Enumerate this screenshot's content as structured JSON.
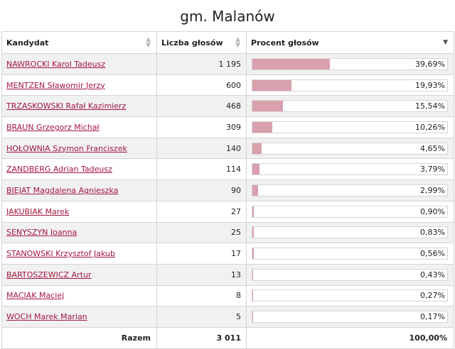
{
  "title": "gm. Malanów",
  "columns": {
    "candidate": "Kandydat",
    "votes": "Liczba głosów",
    "percent": "Procent głosów"
  },
  "rows": [
    {
      "name": "NAWROCKI Karol Tadeusz",
      "votes": "1 195",
      "percent": "39,69%",
      "share": 0.3969
    },
    {
      "name": "MENTZEN Sławomir Jerzy",
      "votes": "600",
      "percent": "19,93%",
      "share": 0.1993
    },
    {
      "name": "TRZASKOWSKI Rafał Kazimierz",
      "votes": "468",
      "percent": "15,54%",
      "share": 0.1554
    },
    {
      "name": "BRAUN Grzegorz Michał",
      "votes": "309",
      "percent": "10,26%",
      "share": 0.1026
    },
    {
      "name": "HOŁOWNIA Szymon Franciszek",
      "votes": "140",
      "percent": "4,65%",
      "share": 0.0465
    },
    {
      "name": "ZANDBERG Adrian Tadeusz",
      "votes": "114",
      "percent": "3,79%",
      "share": 0.0379
    },
    {
      "name": "BIEJAT Magdalena Agnieszka",
      "votes": "90",
      "percent": "2,99%",
      "share": 0.0299
    },
    {
      "name": "JAKUBIAK Marek",
      "votes": "27",
      "percent": "0,90%",
      "share": 0.009
    },
    {
      "name": "SENYSZYN Joanna",
      "votes": "25",
      "percent": "0,83%",
      "share": 0.0083
    },
    {
      "name": "STANOWSKI Krzysztof Jakub",
      "votes": "17",
      "percent": "0,56%",
      "share": 0.0056
    },
    {
      "name": "BARTOSZEWICZ Artur",
      "votes": "13",
      "percent": "0,43%",
      "share": 0.0043
    },
    {
      "name": "MACIAK Maciej",
      "votes": "8",
      "percent": "0,27%",
      "share": 0.0027
    },
    {
      "name": "WOCH Marek Marian",
      "votes": "5",
      "percent": "0,17%",
      "share": 0.0017
    }
  ],
  "footer": {
    "label": "Razem",
    "votes": "3 011",
    "percent": "100,00%"
  },
  "colors": {
    "bar": "#d8a1ad",
    "link": "#a3163e",
    "row_alt": "#f1f1f1",
    "border": "#d4d4d4"
  },
  "icons": {
    "sort_both": "sort-arrows-icon",
    "sort_desc": "sort-desc-icon"
  }
}
